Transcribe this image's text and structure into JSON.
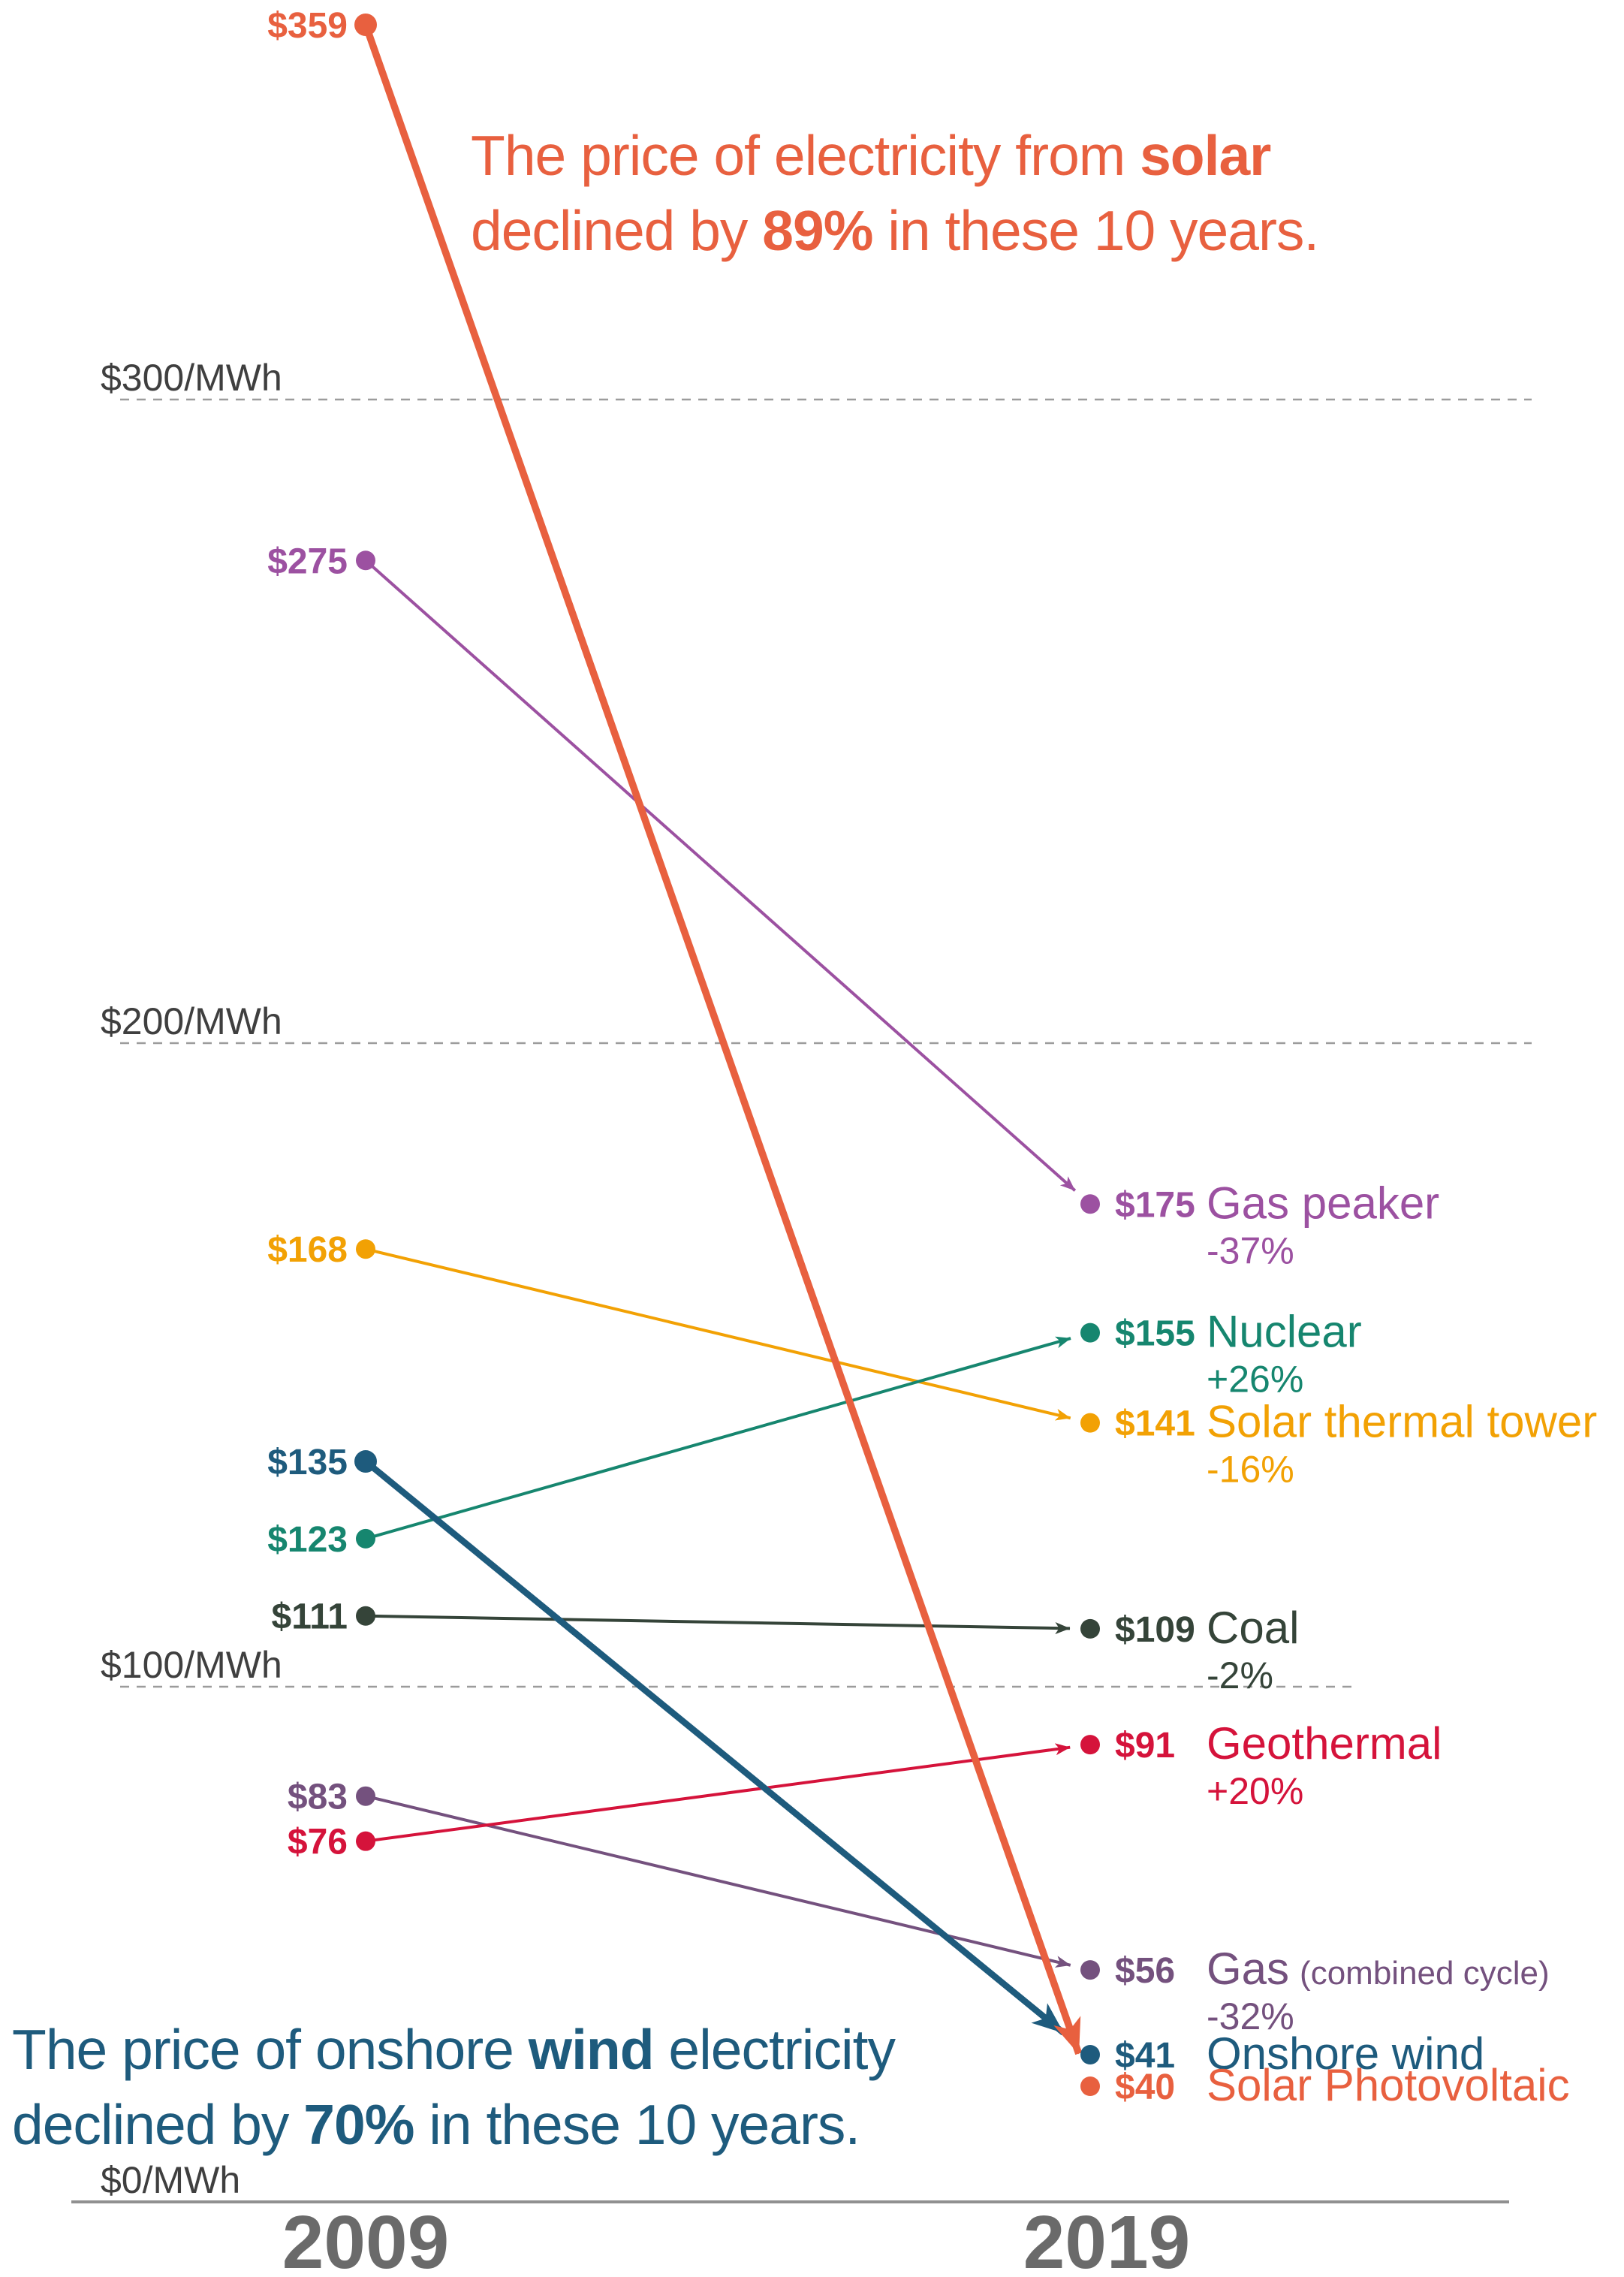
{
  "chart_data": {
    "type": "slope",
    "unit": "$/MWh",
    "ylim": [
      0,
      370
    ],
    "grid": "dashed-horizontal",
    "x_categories": [
      "2009",
      "2019"
    ],
    "gridlines": [
      {
        "label": "$300/MWh",
        "value": 300
      },
      {
        "label": "$200/MWh",
        "value": 200
      },
      {
        "label": "$100/MWh",
        "value": 100
      },
      {
        "label": "$0/MWh",
        "value": 0
      }
    ],
    "series": [
      {
        "id": "gas-peaker",
        "name": "Gas peaker",
        "name_suffix": "",
        "color": "#9C51A1",
        "values": {
          "2009": 275,
          "2019": 175
        },
        "labels": {
          "2009": "$275",
          "2019": "$175"
        },
        "change": "-37%",
        "thick": false
      },
      {
        "id": "solar-thermal-tower",
        "name": "Solar thermal tower",
        "name_suffix": "",
        "color": "#F2A104",
        "values": {
          "2009": 168,
          "2019": 141
        },
        "labels": {
          "2009": "$168",
          "2019": "$141"
        },
        "change": "-16%",
        "thick": false
      },
      {
        "id": "nuclear",
        "name": "Nuclear",
        "name_suffix": "",
        "color": "#16866F",
        "values": {
          "2009": 123,
          "2019": 155
        },
        "labels": {
          "2009": "$123",
          "2019": "$155"
        },
        "change": "+26%",
        "thick": false
      },
      {
        "id": "coal",
        "name": "Coal",
        "name_suffix": "",
        "color": "#354439",
        "values": {
          "2009": 111,
          "2019": 109
        },
        "labels": {
          "2009": "$111",
          "2019": "$109"
        },
        "change": "-2%",
        "thick": false
      },
      {
        "id": "gas-combined-cycle",
        "name": "Gas",
        "name_suffix": "(combined cycle)",
        "color": "#74517E",
        "values": {
          "2009": 83,
          "2019": 56
        },
        "labels": {
          "2009": "$83",
          "2019": "$56"
        },
        "change": "-32%",
        "thick": false
      },
      {
        "id": "geothermal",
        "name": "Geothermal",
        "name_suffix": "",
        "color": "#D5133B",
        "values": {
          "2009": 76,
          "2019": 91
        },
        "labels": {
          "2009": "$76",
          "2019": "$91"
        },
        "change": "+20%",
        "thick": false
      },
      {
        "id": "onshore-wind",
        "name": "Onshore wind",
        "name_suffix": "",
        "color": "#1E5B7D",
        "values": {
          "2009": 135,
          "2019": 41
        },
        "labels": {
          "2009": "$135",
          "2019": "$41"
        },
        "change": null,
        "thick": true
      },
      {
        "id": "solar-photovoltaic",
        "name": "Solar Photovoltaic",
        "name_suffix": "",
        "color": "#E8603F",
        "values": {
          "2009": 359,
          "2019": 40
        },
        "labels": {
          "2009": "$359",
          "2019": "$40"
        },
        "change": null,
        "thick": true
      }
    ]
  },
  "annotations": {
    "solar": {
      "l1_pre": "The price of electricity from ",
      "l1_bold": "solar",
      "l2_pre": "declined by ",
      "l2_bold": "89%",
      "l2_post": " in these 10 years.",
      "color": "#E8603F"
    },
    "wind": {
      "l1_pre": "The price of onshore ",
      "l1_bold": "wind",
      "l1_post": " electricity",
      "l2_pre": "declined by ",
      "l2_bold": "70%",
      "l2_post": " in these 10 years.",
      "color": "#1E5B7D"
    }
  }
}
